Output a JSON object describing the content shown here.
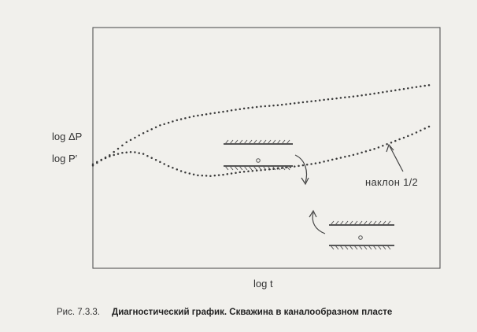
{
  "chart_data": {
    "type": "line",
    "title": "",
    "ylabel_top": "log ΔP",
    "ylabel_bottom": "log P′",
    "xlabel": "log t",
    "x_ticks": [],
    "y_ticks": [],
    "grid": false,
    "x_range": [
      0,
      100
    ],
    "y_range": [
      0,
      100
    ],
    "series": [
      {
        "key": "pressure",
        "style": "dotted",
        "points": [
          [
            0,
            28
          ],
          [
            5,
            35
          ],
          [
            10,
            45
          ],
          [
            15,
            52
          ],
          [
            20,
            58
          ],
          [
            25,
            62
          ],
          [
            30,
            65
          ],
          [
            35,
            67
          ],
          [
            40,
            69
          ],
          [
            45,
            71
          ],
          [
            50,
            72.5
          ],
          [
            55,
            73.5
          ],
          [
            60,
            75
          ],
          [
            65,
            76.5
          ],
          [
            70,
            78
          ],
          [
            75,
            79.5
          ],
          [
            80,
            81
          ],
          [
            85,
            83
          ],
          [
            90,
            85
          ],
          [
            95,
            87
          ],
          [
            100,
            89
          ]
        ]
      },
      {
        "key": "derivative",
        "style": "dotted",
        "points": [
          [
            0,
            27
          ],
          [
            3,
            32
          ],
          [
            6,
            35
          ],
          [
            9,
            37
          ],
          [
            12,
            37.5
          ],
          [
            15,
            36
          ],
          [
            19,
            31
          ],
          [
            23,
            26
          ],
          [
            27,
            22
          ],
          [
            31,
            19.5
          ],
          [
            35,
            19
          ],
          [
            39,
            20
          ],
          [
            44,
            22
          ],
          [
            50,
            23.5
          ],
          [
            56,
            25
          ],
          [
            62,
            27
          ],
          [
            67,
            29
          ],
          [
            72,
            32
          ],
          [
            78,
            35.5
          ],
          [
            84,
            40
          ],
          [
            90,
            46
          ],
          [
            95,
            51
          ],
          [
            100,
            57
          ]
        ]
      }
    ],
    "annotations": {
      "slope_label": "наклон 1/2"
    }
  },
  "caption": {
    "number": "Рис. 7.3.3.",
    "text": "Диагностический график. Скважина в каналообразном пласте"
  }
}
